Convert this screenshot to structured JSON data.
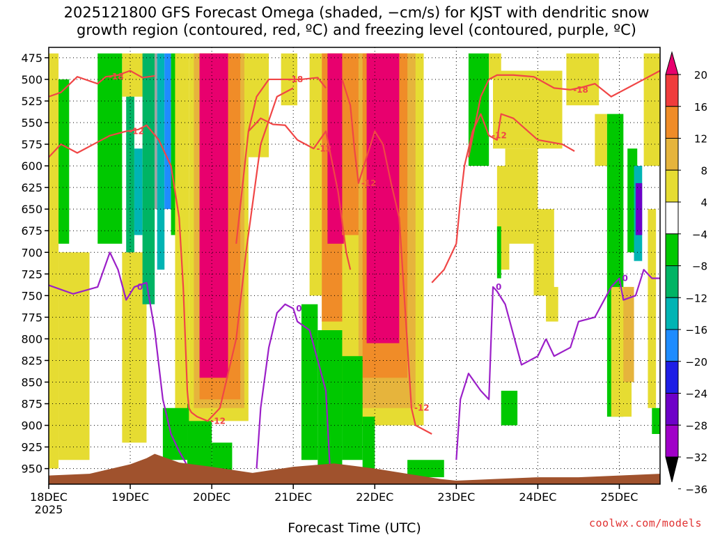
{
  "title_line1": "2025121800 GFS Forecast Omega (shaded, −cm/s) for KJST with dendritic snow",
  "title_line2": "growth region (contoured, red, ºC) and freezing level (contoured, purple, ºC)",
  "credit": "coolwx.com/models",
  "chart_data": {
    "type": "heatmap",
    "title": "2025121800 GFS Forecast Omega (shaded, −cm/s) for KJST with dendritic snow growth region (contoured, red, ºC) and freezing level (contoured, purple, ºC)",
    "xlabel": "Forecast Time (UTC)",
    "ylabel": "",
    "x_ticks": [
      "18DEC",
      "19DEC",
      "20DEC",
      "21DEC",
      "22DEC",
      "23DEC",
      "24DEC",
      "25DEC"
    ],
    "x_tick_year": "2025",
    "xlim_days": [
      0,
      7.5
    ],
    "y_ticks": [
      475,
      500,
      525,
      550,
      575,
      600,
      625,
      650,
      675,
      700,
      725,
      750,
      775,
      800,
      825,
      850,
      875,
      900,
      925,
      950
    ],
    "ylim": [
      463,
      968
    ],
    "grid": true,
    "colorbar": {
      "labels": [
        "20",
        "16",
        "12",
        "8",
        "4",
        "−4",
        "−8",
        "−12",
        "−16",
        "−20",
        "−24",
        "−28",
        "−32",
        "−36"
      ],
      "bounds": [
        24,
        20,
        16,
        12,
        8,
        4,
        -4,
        -8,
        -12,
        -16,
        -20,
        -24,
        -28,
        -32,
        -36
      ],
      "colors": [
        "#e8006e",
        "#f03c3c",
        "#f08c28",
        "#e6b43c",
        "#e6dc32",
        "#ffffff",
        "#00c800",
        "#00b464",
        "#00b4b4",
        "#1e8cff",
        "#1e1ee6",
        "#6e00c8",
        "#a000c8",
        "#a0a0a0"
      ]
    },
    "shading": [
      {
        "x0": 0.0,
        "x1": 0.12,
        "p0": 470,
        "p1": 950,
        "value": 6
      },
      {
        "x0": 0.12,
        "x1": 0.5,
        "p0": 700,
        "p1": 940,
        "value": 6
      },
      {
        "x0": 0.12,
        "x1": 0.25,
        "p0": 500,
        "p1": 690,
        "value": -6
      },
      {
        "x0": 0.6,
        "x1": 0.9,
        "p0": 470,
        "p1": 690,
        "value": -6
      },
      {
        "x0": 0.9,
        "x1": 1.3,
        "p0": 470,
        "p1": 520,
        "value": 6
      },
      {
        "x0": 0.9,
        "x1": 1.2,
        "p0": 700,
        "p1": 920,
        "value": 6
      },
      {
        "x0": 0.95,
        "x1": 1.05,
        "p0": 520,
        "p1": 700,
        "value": -10
      },
      {
        "x0": 1.05,
        "x1": 1.15,
        "p0": 580,
        "p1": 680,
        "value": -14
      },
      {
        "x0": 1.15,
        "x1": 1.3,
        "p0": 470,
        "p1": 760,
        "value": -10
      },
      {
        "x0": 1.3,
        "x1": 1.33,
        "p0": 470,
        "p1": 650,
        "value": -34
      },
      {
        "x0": 1.33,
        "x1": 1.42,
        "p0": 470,
        "p1": 720,
        "value": -14
      },
      {
        "x0": 1.42,
        "x1": 1.5,
        "p0": 470,
        "p1": 650,
        "value": -18
      },
      {
        "x0": 1.5,
        "x1": 1.62,
        "p0": 470,
        "p1": 680,
        "value": -6
      },
      {
        "x0": 1.55,
        "x1": 1.72,
        "p0": 470,
        "p1": 890,
        "value": 6
      },
      {
        "x0": 1.4,
        "x1": 1.7,
        "p0": 880,
        "p1": 940,
        "value": -6
      },
      {
        "x0": 1.7,
        "x1": 2.0,
        "p0": 875,
        "p1": 950,
        "value": -6
      },
      {
        "x0": 2.0,
        "x1": 2.25,
        "p0": 920,
        "p1": 955,
        "value": -6
      },
      {
        "x0": 1.72,
        "x1": 2.45,
        "p0": 470,
        "p1": 895,
        "value": 6
      },
      {
        "x0": 1.78,
        "x1": 2.4,
        "p0": 470,
        "p1": 880,
        "value": 10
      },
      {
        "x0": 1.85,
        "x1": 2.35,
        "p0": 470,
        "p1": 870,
        "value": 14
      },
      {
        "x0": 1.85,
        "x1": 2.2,
        "p0": 470,
        "p1": 845,
        "value": 22
      },
      {
        "x0": 2.4,
        "x1": 2.7,
        "p0": 470,
        "p1": 590,
        "value": 6
      },
      {
        "x0": 2.85,
        "x1": 3.05,
        "p0": 470,
        "p1": 530,
        "value": 6
      },
      {
        "x0": 3.2,
        "x1": 3.35,
        "p0": 470,
        "p1": 750,
        "value": 6
      },
      {
        "x0": 3.35,
        "x1": 4.6,
        "p0": 470,
        "p1": 900,
        "value": 6
      },
      {
        "x0": 3.35,
        "x1": 3.6,
        "p0": 470,
        "p1": 780,
        "value": 14
      },
      {
        "x0": 3.42,
        "x1": 3.62,
        "p0": 470,
        "p1": 690,
        "value": 22
      },
      {
        "x0": 3.6,
        "x1": 3.85,
        "p0": 470,
        "p1": 680,
        "value": 14
      },
      {
        "x0": 3.8,
        "x1": 4.5,
        "p0": 470,
        "p1": 880,
        "value": 10
      },
      {
        "x0": 3.85,
        "x1": 4.4,
        "p0": 470,
        "p1": 845,
        "value": 14
      },
      {
        "x0": 3.9,
        "x1": 4.3,
        "p0": 470,
        "p1": 805,
        "value": 22
      },
      {
        "x0": 3.1,
        "x1": 3.3,
        "p0": 760,
        "p1": 940,
        "value": -6
      },
      {
        "x0": 3.3,
        "x1": 3.6,
        "p0": 790,
        "p1": 950,
        "value": -6
      },
      {
        "x0": 3.6,
        "x1": 3.85,
        "p0": 820,
        "p1": 940,
        "value": -6
      },
      {
        "x0": 3.85,
        "x1": 4.0,
        "p0": 890,
        "p1": 950,
        "value": -6
      },
      {
        "x0": 4.4,
        "x1": 4.85,
        "p0": 940,
        "p1": 960,
        "value": -6
      },
      {
        "x0": 5.15,
        "x1": 5.4,
        "p0": 470,
        "p1": 600,
        "value": -6
      },
      {
        "x0": 5.4,
        "x1": 5.55,
        "p0": 470,
        "p1": 500,
        "value": 6
      },
      {
        "x0": 5.45,
        "x1": 6.3,
        "p0": 490,
        "p1": 580,
        "value": 6
      },
      {
        "x0": 5.6,
        "x1": 6.0,
        "p0": 580,
        "p1": 690,
        "value": 6
      },
      {
        "x0": 5.5,
        "x1": 5.65,
        "p0": 600,
        "p1": 720,
        "value": 6
      },
      {
        "x0": 5.5,
        "x1": 5.55,
        "p0": 670,
        "p1": 730,
        "value": -6
      },
      {
        "x0": 5.95,
        "x1": 6.2,
        "p0": 650,
        "p1": 750,
        "value": 6
      },
      {
        "x0": 6.35,
        "x1": 6.75,
        "p0": 470,
        "p1": 530,
        "value": 6
      },
      {
        "x0": 6.1,
        "x1": 6.25,
        "p0": 740,
        "p1": 780,
        "value": 6
      },
      {
        "x0": 5.55,
        "x1": 5.75,
        "p0": 860,
        "p1": 900,
        "value": -6
      },
      {
        "x0": 6.7,
        "x1": 6.85,
        "p0": 540,
        "p1": 600,
        "value": 6
      },
      {
        "x0": 6.85,
        "x1": 7.05,
        "p0": 540,
        "p1": 890,
        "value": -6
      },
      {
        "x0": 6.9,
        "x1": 7.15,
        "p0": 740,
        "p1": 890,
        "value": 6
      },
      {
        "x0": 7.05,
        "x1": 7.18,
        "p0": 740,
        "p1": 850,
        "value": 10
      },
      {
        "x0": 7.1,
        "x1": 7.22,
        "p0": 580,
        "p1": 700,
        "value": -6
      },
      {
        "x0": 7.18,
        "x1": 7.28,
        "p0": 600,
        "p1": 710,
        "value": -14
      },
      {
        "x0": 7.2,
        "x1": 7.28,
        "p0": 620,
        "p1": 680,
        "value": -26
      },
      {
        "x0": 7.3,
        "x1": 7.5,
        "p0": 470,
        "p1": 600,
        "value": 6
      },
      {
        "x0": 7.35,
        "x1": 7.45,
        "p0": 650,
        "p1": 880,
        "value": 6
      },
      {
        "x0": 7.4,
        "x1": 7.5,
        "p0": 880,
        "p1": 910,
        "value": -6
      }
    ],
    "terrain": {
      "color": "#a0522d",
      "x": [
        0,
        0.5,
        1.0,
        1.2,
        1.3,
        1.45,
        1.6,
        2.0,
        2.5,
        3.0,
        3.5,
        4.0,
        4.4,
        4.8,
        5.0,
        5.5,
        6.0,
        6.5,
        7.0,
        7.5
      ],
      "p": [
        958,
        956,
        945,
        938,
        933,
        938,
        943,
        948,
        955,
        948,
        944,
        950,
        956,
        962,
        964,
        962,
        960,
        960,
        958,
        956
      ]
    },
    "red_contours": [
      {
        "label": "-18",
        "x": [
          0,
          0.15,
          0.35,
          0.6,
          0.7,
          0.85,
          1.0,
          1.15,
          1.3
        ],
        "p": [
          520,
          515,
          497,
          505,
          497,
          495,
          490,
          498,
          496
        ]
      },
      {
        "label": "-12",
        "x": [
          0,
          0.15,
          0.35,
          0.55,
          0.75,
          0.95,
          1.1,
          1.2,
          1.35,
          1.5,
          1.6
        ],
        "p": [
          590,
          575,
          585,
          575,
          565,
          560,
          558,
          553,
          570,
          600,
          660
        ]
      },
      {
        "label": "-12",
        "x": [
          1.6,
          1.65,
          1.7,
          1.72,
          1.75,
          1.82,
          1.95,
          2.1,
          2.3,
          2.42,
          2.6,
          2.8,
          3.0
        ],
        "p": [
          660,
          740,
          860,
          880,
          885,
          890,
          895,
          880,
          800,
          700,
          575,
          520,
          510
        ]
      },
      {
        "label": "-18",
        "x": [
          2.3,
          2.45,
          2.55,
          2.7,
          2.9,
          3.1,
          3.3,
          3.4
        ],
        "p": [
          690,
          560,
          520,
          500,
          500,
          500,
          498,
          510
        ]
      },
      {
        "label": "-12",
        "x": [
          2.45,
          2.6,
          2.75,
          2.9,
          3.05,
          3.25,
          3.4,
          3.55,
          3.65,
          3.7
        ],
        "p": [
          560,
          545,
          552,
          553,
          570,
          580,
          560,
          630,
          700,
          720
        ]
      },
      {
        "label": "-12",
        "x": [
          3.6,
          3.7,
          3.75,
          3.8,
          4.0,
          4.1
        ],
        "p": [
          500,
          530,
          580,
          620,
          560,
          575
        ]
      },
      {
        "label": "-12",
        "x": [
          4.1,
          4.2,
          4.3,
          4.45,
          4.5,
          4.6,
          4.7
        ],
        "p": [
          575,
          620,
          660,
          880,
          900,
          905,
          910
        ]
      },
      {
        "label": "-12",
        "x": [
          4.7,
          4.85,
          5.0,
          5.05,
          5.1,
          5.2,
          5.3,
          5.4,
          5.5,
          5.55,
          5.7,
          6.0,
          6.3,
          6.45
        ],
        "p": [
          735,
          720,
          690,
          640,
          600,
          560,
          540,
          565,
          570,
          540,
          545,
          570,
          575,
          583
        ]
      },
      {
        "label": "-18",
        "x": [
          5.15,
          5.3,
          5.4,
          5.5,
          5.7,
          5.95,
          6.2,
          6.4,
          6.55,
          6.7,
          6.9,
          7.1,
          7.3,
          7.5
        ],
        "p": [
          590,
          520,
          500,
          495,
          495,
          497,
          510,
          512,
          509,
          505,
          520,
          510,
          500,
          490
        ]
      }
    ],
    "purple_contours": [
      {
        "label": "0",
        "x": [
          0,
          0.3,
          0.6,
          0.75,
          0.85,
          0.95,
          1.05,
          1.2,
          1.3,
          1.4,
          1.5,
          1.6,
          1.75
        ],
        "p": [
          738,
          748,
          740,
          700,
          720,
          755,
          740,
          735,
          790,
          870,
          910,
          930,
          955
        ]
      },
      {
        "label": "0",
        "x": [
          2.55,
          2.6,
          2.7,
          2.8,
          2.9,
          3.0,
          3.05,
          3.2,
          3.4,
          3.45
        ],
        "p": [
          950,
          880,
          810,
          770,
          760,
          765,
          780,
          790,
          860,
          950
        ]
      },
      {
        "label": "0",
        "x": [
          5.0,
          5.05,
          5.15,
          5.3,
          5.4,
          5.45,
          5.5,
          5.6,
          5.8,
          6.0,
          6.1
        ],
        "p": [
          940,
          870,
          840,
          860,
          870,
          740,
          745,
          760,
          830,
          820,
          800
        ]
      },
      {
        "label": "0",
        "x": [
          6.1,
          6.2,
          6.4,
          6.5,
          6.7,
          6.9,
          7.0,
          7.05,
          7.2,
          7.3,
          7.4,
          7.5
        ],
        "p": [
          800,
          820,
          810,
          780,
          775,
          740,
          730,
          755,
          750,
          720,
          730,
          730
        ]
      }
    ]
  }
}
